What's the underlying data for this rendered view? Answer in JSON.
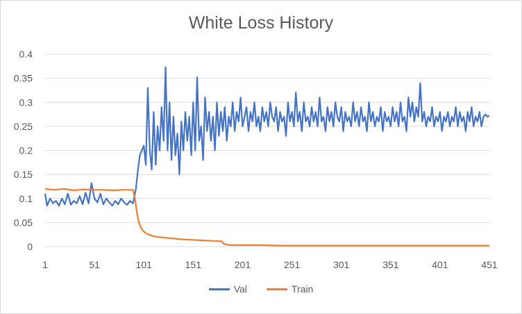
{
  "chart_data": {
    "type": "line",
    "title": "White Loss History",
    "xlabel": "",
    "ylabel": "",
    "xlim": [
      1,
      451
    ],
    "ylim": [
      0,
      0.4
    ],
    "x_ticks": [
      "1",
      "51",
      "101",
      "151",
      "201",
      "251",
      "301",
      "351",
      "401",
      "451"
    ],
    "y_ticks": [
      "0",
      "0.05",
      "0.1",
      "0.15",
      "0.2",
      "0.25",
      "0.3",
      "0.35",
      "0.4"
    ],
    "grid": true,
    "legend": "bottom",
    "series": [
      {
        "name": "Val",
        "color": "#4472c4",
        "points": [
          [
            1,
            0.11
          ],
          [
            3,
            0.085
          ],
          [
            6,
            0.1
          ],
          [
            9,
            0.09
          ],
          [
            12,
            0.095
          ],
          [
            15,
            0.085
          ],
          [
            18,
            0.1
          ],
          [
            21,
            0.088
          ],
          [
            24,
            0.11
          ],
          [
            27,
            0.087
          ],
          [
            30,
            0.095
          ],
          [
            33,
            0.09
          ],
          [
            36,
            0.105
          ],
          [
            39,
            0.088
          ],
          [
            42,
            0.112
          ],
          [
            45,
            0.09
          ],
          [
            48,
            0.132
          ],
          [
            51,
            0.1
          ],
          [
            54,
            0.092
          ],
          [
            57,
            0.11
          ],
          [
            60,
            0.088
          ],
          [
            63,
            0.1
          ],
          [
            66,
            0.092
          ],
          [
            69,
            0.085
          ],
          [
            72,
            0.095
          ],
          [
            75,
            0.088
          ],
          [
            78,
            0.1
          ],
          [
            81,
            0.092
          ],
          [
            84,
            0.087
          ],
          [
            87,
            0.095
          ],
          [
            90,
            0.09
          ],
          [
            93,
            0.12
          ],
          [
            95,
            0.16
          ],
          [
            97,
            0.19
          ],
          [
            99,
            0.2
          ],
          [
            101,
            0.21
          ],
          [
            103,
            0.17
          ],
          [
            105,
            0.33
          ],
          [
            107,
            0.2
          ],
          [
            109,
            0.16
          ],
          [
            111,
            0.28
          ],
          [
            113,
            0.17
          ],
          [
            115,
            0.25
          ],
          [
            117,
            0.2
          ],
          [
            119,
            0.29
          ],
          [
            121,
            0.22
          ],
          [
            123,
            0.373
          ],
          [
            125,
            0.2
          ],
          [
            127,
            0.3
          ],
          [
            129,
            0.18
          ],
          [
            131,
            0.27
          ],
          [
            133,
            0.19
          ],
          [
            135,
            0.235
          ],
          [
            137,
            0.15
          ],
          [
            139,
            0.26
          ],
          [
            141,
            0.2
          ],
          [
            143,
            0.28
          ],
          [
            145,
            0.22
          ],
          [
            147,
            0.27
          ],
          [
            149,
            0.19
          ],
          [
            151,
            0.3
          ],
          [
            153,
            0.2
          ],
          [
            155,
            0.352
          ],
          [
            157,
            0.22
          ],
          [
            159,
            0.25
          ],
          [
            161,
            0.18
          ],
          [
            163,
            0.31
          ],
          [
            165,
            0.24
          ],
          [
            167,
            0.28
          ],
          [
            169,
            0.22
          ],
          [
            171,
            0.27
          ],
          [
            173,
            0.2
          ],
          [
            175,
            0.3
          ],
          [
            177,
            0.23
          ],
          [
            179,
            0.28
          ],
          [
            181,
            0.24
          ],
          [
            183,
            0.29
          ],
          [
            185,
            0.22
          ],
          [
            187,
            0.27
          ],
          [
            189,
            0.25
          ],
          [
            191,
            0.3
          ],
          [
            193,
            0.24
          ],
          [
            195,
            0.28
          ],
          [
            197,
            0.26
          ],
          [
            199,
            0.31
          ],
          [
            201,
            0.25
          ],
          [
            203,
            0.27
          ],
          [
            205,
            0.29
          ],
          [
            207,
            0.24
          ],
          [
            209,
            0.28
          ],
          [
            211,
            0.26
          ],
          [
            213,
            0.3
          ],
          [
            215,
            0.25
          ],
          [
            217,
            0.27
          ],
          [
            219,
            0.24
          ],
          [
            221,
            0.29
          ],
          [
            223,
            0.26
          ],
          [
            225,
            0.28
          ],
          [
            227,
            0.25
          ],
          [
            229,
            0.3
          ],
          [
            231,
            0.27
          ],
          [
            233,
            0.26
          ],
          [
            235,
            0.29
          ],
          [
            237,
            0.24
          ],
          [
            239,
            0.28
          ],
          [
            241,
            0.26
          ],
          [
            243,
            0.27
          ],
          [
            245,
            0.23
          ],
          [
            247,
            0.3
          ],
          [
            249,
            0.26
          ],
          [
            251,
            0.28
          ],
          [
            253,
            0.25
          ],
          [
            255,
            0.32
          ],
          [
            257,
            0.26
          ],
          [
            259,
            0.28
          ],
          [
            261,
            0.24
          ],
          [
            263,
            0.3
          ],
          [
            265,
            0.26
          ],
          [
            267,
            0.27
          ],
          [
            269,
            0.25
          ],
          [
            271,
            0.29
          ],
          [
            273,
            0.26
          ],
          [
            275,
            0.28
          ],
          [
            277,
            0.25
          ],
          [
            279,
            0.31
          ],
          [
            281,
            0.26
          ],
          [
            283,
            0.27
          ],
          [
            285,
            0.24
          ],
          [
            287,
            0.29
          ],
          [
            289,
            0.26
          ],
          [
            291,
            0.28
          ],
          [
            293,
            0.25
          ],
          [
            295,
            0.3
          ],
          [
            297,
            0.27
          ],
          [
            299,
            0.26
          ],
          [
            301,
            0.29
          ],
          [
            303,
            0.24
          ],
          [
            305,
            0.28
          ],
          [
            307,
            0.26
          ],
          [
            309,
            0.27
          ],
          [
            311,
            0.25
          ],
          [
            313,
            0.3
          ],
          [
            315,
            0.26
          ],
          [
            317,
            0.28
          ],
          [
            319,
            0.25
          ],
          [
            321,
            0.29
          ],
          [
            323,
            0.26
          ],
          [
            325,
            0.27
          ],
          [
            327,
            0.24
          ],
          [
            329,
            0.3
          ],
          [
            331,
            0.26
          ],
          [
            333,
            0.28
          ],
          [
            335,
            0.25
          ],
          [
            337,
            0.27
          ],
          [
            339,
            0.26
          ],
          [
            341,
            0.29
          ],
          [
            343,
            0.24
          ],
          [
            345,
            0.28
          ],
          [
            347,
            0.26
          ],
          [
            349,
            0.27
          ],
          [
            351,
            0.25
          ],
          [
            353,
            0.29
          ],
          [
            355,
            0.26
          ],
          [
            357,
            0.28
          ],
          [
            359,
            0.25
          ],
          [
            361,
            0.3
          ],
          [
            363,
            0.26
          ],
          [
            365,
            0.27
          ],
          [
            367,
            0.24
          ],
          [
            369,
            0.31
          ],
          [
            371,
            0.27
          ],
          [
            373,
            0.3
          ],
          [
            375,
            0.26
          ],
          [
            377,
            0.29
          ],
          [
            379,
            0.27
          ],
          [
            381,
            0.34
          ],
          [
            383,
            0.26
          ],
          [
            385,
            0.28
          ],
          [
            387,
            0.25
          ],
          [
            389,
            0.27
          ],
          [
            391,
            0.26
          ],
          [
            393,
            0.29
          ],
          [
            395,
            0.25
          ],
          [
            397,
            0.27
          ],
          [
            399,
            0.26
          ],
          [
            401,
            0.28
          ],
          [
            403,
            0.24
          ],
          [
            405,
            0.27
          ],
          [
            407,
            0.26
          ],
          [
            409,
            0.28
          ],
          [
            411,
            0.25
          ],
          [
            413,
            0.27
          ],
          [
            415,
            0.26
          ],
          [
            417,
            0.29
          ],
          [
            419,
            0.25
          ],
          [
            421,
            0.28
          ],
          [
            423,
            0.26
          ],
          [
            425,
            0.27
          ],
          [
            427,
            0.24
          ],
          [
            429,
            0.28
          ],
          [
            431,
            0.26
          ],
          [
            433,
            0.29
          ],
          [
            435,
            0.25
          ],
          [
            437,
            0.27
          ],
          [
            439,
            0.26
          ],
          [
            441,
            0.28
          ],
          [
            443,
            0.25
          ],
          [
            445,
            0.27
          ],
          [
            447,
            0.275
          ],
          [
            449,
            0.27
          ],
          [
            451,
            0.272
          ]
        ]
      },
      {
        "name": "Train",
        "color": "#ed7d31",
        "points": [
          [
            1,
            0.12
          ],
          [
            10,
            0.118
          ],
          [
            20,
            0.12
          ],
          [
            30,
            0.117
          ],
          [
            40,
            0.119
          ],
          [
            50,
            0.118
          ],
          [
            60,
            0.118
          ],
          [
            70,
            0.117
          ],
          [
            80,
            0.118
          ],
          [
            90,
            0.118
          ],
          [
            92,
            0.1
          ],
          [
            94,
            0.07
          ],
          [
            96,
            0.05
          ],
          [
            98,
            0.04
          ],
          [
            100,
            0.033
          ],
          [
            103,
            0.028
          ],
          [
            106,
            0.025
          ],
          [
            110,
            0.022
          ],
          [
            115,
            0.02
          ],
          [
            120,
            0.019
          ],
          [
            130,
            0.017
          ],
          [
            140,
            0.015
          ],
          [
            150,
            0.014
          ],
          [
            160,
            0.013
          ],
          [
            170,
            0.012
          ],
          [
            180,
            0.011
          ],
          [
            182,
            0.006
          ],
          [
            185,
            0.004
          ],
          [
            190,
            0.003
          ],
          [
            200,
            0.003
          ],
          [
            220,
            0.003
          ],
          [
            240,
            0.002
          ],
          [
            260,
            0.002
          ],
          [
            300,
            0.002
          ],
          [
            350,
            0.002
          ],
          [
            400,
            0.002
          ],
          [
            451,
            0.002
          ]
        ]
      }
    ]
  }
}
